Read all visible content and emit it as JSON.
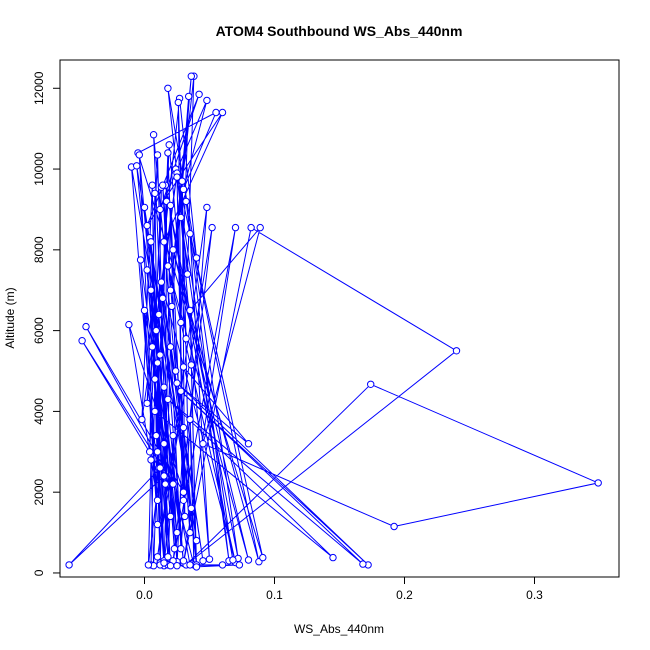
{
  "chart_data": {
    "type": "line",
    "title": "ATOM4 Southbound WS_Abs_440nm",
    "xlabel": "WS_Abs_440nm",
    "ylabel": "Altitude (m)",
    "xlim": [
      -0.065,
      0.365
    ],
    "ylim": [
      -100,
      12700
    ],
    "x_ticks": [
      0.0,
      0.1,
      0.2,
      0.3
    ],
    "x_tick_labels": [
      "0.0",
      "0.1",
      "0.2",
      "0.3"
    ],
    "y_ticks": [
      0,
      2000,
      4000,
      6000,
      8000,
      10000,
      12000
    ],
    "y_tick_labels": [
      "0",
      "2000",
      "4000",
      "6000",
      "8000",
      "10000",
      "12000"
    ],
    "grid": false,
    "line_color": "#0000ff",
    "marker": "open-circle",
    "series": [
      {
        "x": [
          0.005,
          0.008,
          0.012,
          0.01,
          0.015,
          0.006,
          0.02,
          0.009,
          0.025,
          0.011,
          0.03,
          0.014,
          0.045,
          0.013,
          0.07,
          0.018,
          0.08,
          0.022,
          0.088,
          0.035,
          0.05,
          0.028,
          0.065,
          0.032,
          0.072,
          0.016,
          0.068,
          0.024,
          0.091,
          -0.005,
          0.055,
          0.03,
          0.048,
          0.012,
          0.042,
          0.002,
          0.06,
          0.015,
          0.027,
          0.04,
          0.018,
          0.033,
          0.038,
          0.02,
          0.036,
          0.021,
          0.034,
          0.028,
          0.026,
          0.032,
          0.019,
          0.012,
          0.018,
          0.024,
          0.007,
          0.015,
          0.01,
          0.002,
          0.025,
          -0.002,
          0.006,
          0.009,
          0.013,
          0.004,
          0.008,
          0.011,
          0.017,
          0.016,
          0.02,
          0.03,
          0.025,
          0.031,
          0.029,
          0.035,
          0.014,
          0.028,
          0.048,
          0.01,
          0.052,
          0.022,
          0.07,
          0.03,
          0.082,
          0.24,
          0.032,
          0.174,
          0.349,
          0.192,
          0.045,
          0.089,
          0.035,
          0.04,
          0.02,
          0.015,
          0.03,
          0.08,
          0.025,
          0.172,
          0.028,
          0.168,
          0.018,
          0.145,
          0.008,
          0.038,
          0.035,
          0.04,
          0.03,
          0.025,
          0.022,
          0.018,
          0.015,
          0.012,
          0.01,
          0.007,
          0.005,
          0.003,
          0.012,
          -0.058,
          0.015,
          -0.048,
          0.022,
          -0.045,
          0.03,
          -0.012,
          0.01,
          -0.01,
          0.036,
          -0.006,
          0.02,
          -0.004,
          0.01,
          -0.003,
          0.025,
          0.0,
          0.04,
          0.004,
          0.023,
          0.005,
          0.018,
          0.002,
          0.03,
          0.005,
          0.015,
          0.0,
          0.035,
          0.06,
          0.02,
          0.073,
          0.04,
          0.036
        ],
        "y": [
          200,
          4800,
          250,
          5200,
          300,
          5600,
          220,
          6000,
          280,
          6400,
          240,
          6800,
          300,
          7200,
          260,
          7600,
          320,
          8000,
          280,
          8400,
          340,
          8800,
          300,
          9200,
          360,
          9600,
          320,
          10000,
          380,
          10400,
          11400,
          9500,
          11700,
          9000,
          11850,
          8600,
          11400,
          8200,
          11750,
          7800,
          12000,
          7400,
          12300,
          7000,
          12300,
          6600,
          11800,
          6200,
          11650,
          5800,
          10600,
          5400,
          10400,
          5000,
          10850,
          4600,
          10350,
          4200,
          9900,
          3800,
          9600,
          3400,
          9550,
          3000,
          9400,
          2600,
          9200,
          2200,
          9100,
          1800,
          9800,
          1400,
          9700,
          1000,
          9600,
          600,
          9050,
          400,
          8550,
          300,
          8550,
          250,
          8550,
          5500,
          200,
          4670,
          2230,
          1150,
          3200,
          8550,
          6500,
          200,
          5600,
          180,
          5100,
          3200,
          4700,
          200,
          4500,
          220,
          4300,
          380,
          4000,
          200,
          3800,
          200,
          3600,
          180,
          3400,
          200,
          3200,
          200,
          3000,
          180,
          2800,
          200,
          2600,
          200,
          2400,
          5750,
          2200,
          6100,
          2000,
          6150,
          1800,
          10050,
          1600,
          10080,
          1400,
          10350,
          1200,
          7750,
          1000,
          9050,
          800,
          8300,
          600,
          8200,
          400,
          7500,
          300,
          7000,
          250,
          6500,
          200,
          200,
          180,
          200,
          150,
          5150
        ]
      }
    ]
  }
}
